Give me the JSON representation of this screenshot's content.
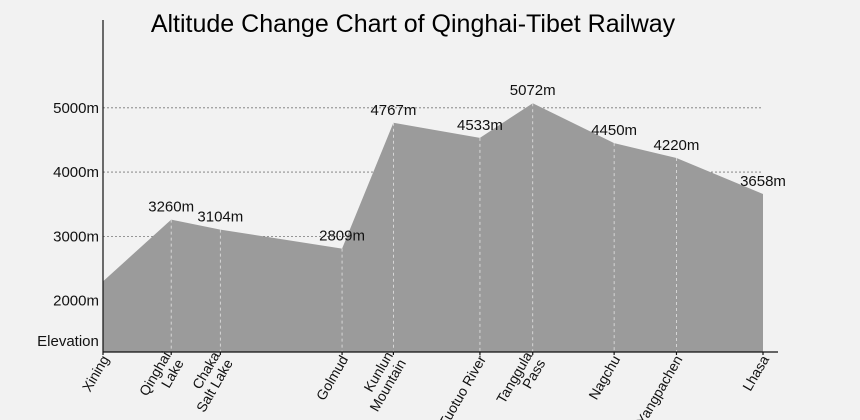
{
  "chart_data": {
    "type": "area",
    "title": "Altitude Change Chart of Qinghai-Tibet Railway",
    "ylabel": "Elevation",
    "xlabel": "",
    "yticks": [
      "2000m",
      "3000m",
      "4000m",
      "5000m"
    ],
    "ytick_values": [
      2000,
      3000,
      4000,
      5000
    ],
    "ylim": [
      1200,
      5900
    ],
    "grid": true,
    "legend": "none",
    "fill_color": "#9b9b9b",
    "background_color": "#f2f2f2",
    "points": [
      {
        "name": [
          "Xining"
        ],
        "x": 0,
        "value": 2300,
        "label": ""
      },
      {
        "name": [
          "Qinghai",
          "Lake"
        ],
        "x": 0.93,
        "value": 3260,
        "label": "3260m"
      },
      {
        "name": [
          "Chaka",
          "Salt Lake"
        ],
        "x": 1.6,
        "value": 3104,
        "label": "3104m"
      },
      {
        "name": [
          "Golmud"
        ],
        "x": 3.26,
        "value": 2809,
        "label": "2809m"
      },
      {
        "name": [
          "Kunlun",
          "Mountain"
        ],
        "x": 3.96,
        "value": 4767,
        "label": "4767m"
      },
      {
        "name": [
          "Tuotuo River"
        ],
        "x": 5.14,
        "value": 4533,
        "label": "4533m"
      },
      {
        "name": [
          "Tanggula",
          "Pass"
        ],
        "x": 5.86,
        "value": 5072,
        "label": "5072m"
      },
      {
        "name": [
          "Nagchu"
        ],
        "x": 6.97,
        "value": 4450,
        "label": "4450m"
      },
      {
        "name": [
          "Yangpachen"
        ],
        "x": 7.82,
        "value": 4220,
        "label": "4220m"
      },
      {
        "name": [
          "Lhasa"
        ],
        "x": 9.0,
        "value": 3658,
        "label": "3658m"
      }
    ]
  }
}
